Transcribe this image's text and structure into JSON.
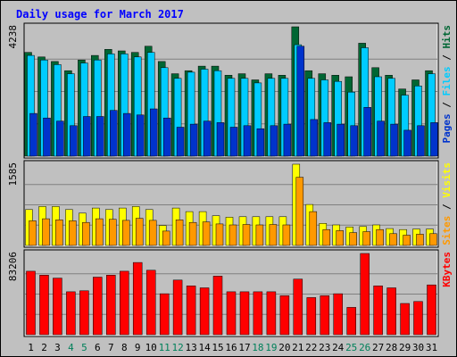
{
  "chart_data": {
    "type": "bar",
    "title": "Daily usage for March 2017",
    "categories": [
      "1",
      "2",
      "3",
      "4",
      "5",
      "6",
      "7",
      "8",
      "9",
      "10",
      "11",
      "12",
      "13",
      "14",
      "15",
      "16",
      "17",
      "18",
      "19",
      "20",
      "21",
      "22",
      "23",
      "24",
      "25",
      "26",
      "27",
      "28",
      "29",
      "30",
      "31"
    ],
    "weekend_days": [
      "4",
      "5",
      "11",
      "12",
      "18",
      "19",
      "25",
      "26"
    ],
    "panels": [
      {
        "name": "pages-files-hits",
        "max_label": "4238",
        "ymax": 4238,
        "legend": [
          "Pages",
          "Files",
          "Hits"
        ],
        "series": [
          {
            "name": "Hits",
            "color": "#006633",
            "values": [
              3400,
              3250,
              3100,
              2800,
              3150,
              3300,
              3500,
              3450,
              3400,
              3600,
              3100,
              2700,
              2800,
              2950,
              2950,
              2650,
              2700,
              2500,
              2700,
              2650,
              4238,
              2800,
              2700,
              2650,
              2600,
              3700,
              2900,
              2650,
              2200,
              2500,
              2800
            ]
          },
          {
            "name": "Files",
            "color": "#00ccff",
            "values": [
              3300,
              3150,
              3000,
              2700,
              3050,
              3150,
              3350,
              3350,
              3250,
              3400,
              2900,
              2550,
              2750,
              2850,
              2800,
              2550,
              2550,
              2400,
              2550,
              2550,
              3650,
              2550,
              2500,
              2450,
              2100,
              3550,
              2600,
              2550,
              2000,
              2300,
              2700
            ]
          },
          {
            "name": "Pages",
            "color": "#0033cc",
            "values": [
              1400,
              1250,
              1150,
              1000,
              1300,
              1300,
              1500,
              1400,
              1350,
              1550,
              1250,
              950,
              1050,
              1150,
              1100,
              950,
              1000,
              900,
              1000,
              1050,
              3600,
              1200,
              1100,
              1050,
              1000,
              1600,
              1150,
              1050,
              850,
              1000,
              1100
            ]
          }
        ]
      },
      {
        "name": "visits-sites",
        "max_label": "1585",
        "ymax": 1585,
        "legend": [
          "Sites",
          "Visits"
        ],
        "series": [
          {
            "name": "Visits",
            "color": "#ffff00",
            "values": [
              700,
              760,
              760,
              700,
              630,
              730,
              700,
              730,
              760,
              700,
              390,
              730,
              660,
              660,
              580,
              550,
              560,
              560,
              560,
              560,
              1585,
              800,
              430,
              400,
              360,
              370,
              400,
              330,
              310,
              320,
              320
            ]
          },
          {
            "name": "Sites",
            "color": "#ff9900",
            "values": [
              480,
              520,
              500,
              480,
              450,
              520,
              510,
              490,
              530,
              490,
              280,
              500,
              450,
              460,
              420,
              400,
              410,
              400,
              410,
              400,
              1330,
              660,
              310,
              290,
              250,
              270,
              310,
              230,
              200,
              220,
              230
            ]
          }
        ]
      },
      {
        "name": "kbytes",
        "max_label": "83206",
        "ymax": 83206,
        "legend": [
          "KBytes"
        ],
        "series": [
          {
            "name": "KBytes",
            "color": "#ff0000",
            "values": [
              65000,
              61000,
              58000,
              44000,
              45000,
              59000,
              61000,
              65000,
              74000,
              66000,
              42000,
              56000,
              50000,
              48000,
              60000,
              44000,
              44000,
              44000,
              44000,
              40000,
              57000,
              38000,
              40000,
              42000,
              28000,
              83206,
              50000,
              48000,
              32000,
              34000,
              51000
            ]
          }
        ]
      }
    ]
  }
}
